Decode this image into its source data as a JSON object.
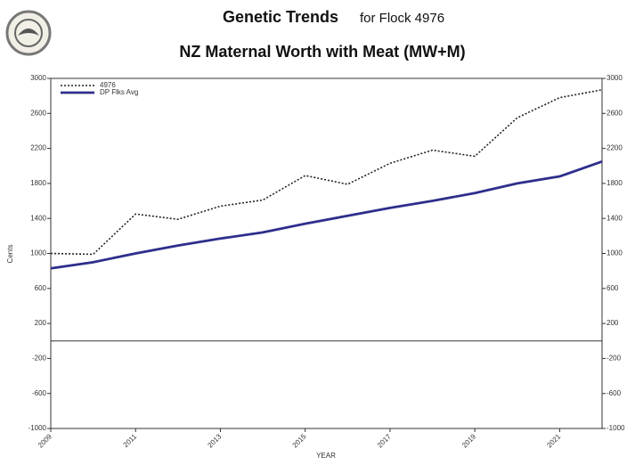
{
  "chart_data": {
    "type": "line",
    "title": "Genetic Trends",
    "title_suffix": "for Flock 4976",
    "subtitle": "NZ Maternal Worth with Meat (MW+M)",
    "x_label": "YEAR",
    "y_label": "Cents",
    "x": [
      2009,
      2010,
      2011,
      2012,
      2013,
      2014,
      2015,
      2016,
      2017,
      2018,
      2019,
      2020,
      2021,
      2022
    ],
    "series": [
      {
        "name": "4976",
        "color": "#222222",
        "dash": "dotted",
        "values": [
          1000,
          990,
          1450,
          1390,
          1540,
          1610,
          1890,
          1790,
          2030,
          2180,
          2110,
          2550,
          2780,
          2870
        ]
      },
      {
        "name": "DP Flks Avg",
        "color": "#2e2e8c",
        "dash": "solid",
        "values": [
          830,
          900,
          1000,
          1090,
          1170,
          1240,
          1340,
          1430,
          1520,
          1600,
          1690,
          1800,
          1880,
          2050
        ]
      }
    ],
    "xlim": [
      2009,
      2022
    ],
    "xticks": [
      2009,
      2011,
      2013,
      2015,
      2017,
      2019,
      2021
    ],
    "ylim": [
      -1000,
      3000
    ],
    "yticks": [
      3000,
      2600,
      2200,
      1800,
      1400,
      1000,
      600,
      200,
      -200,
      -600,
      -1000
    ],
    "y2lim": [
      -1000,
      3000
    ],
    "y2ticks": [
      3000,
      2600,
      2200,
      1800,
      1400,
      1000,
      600,
      200,
      -200,
      -600,
      -1000
    ],
    "legend": "upper left"
  }
}
